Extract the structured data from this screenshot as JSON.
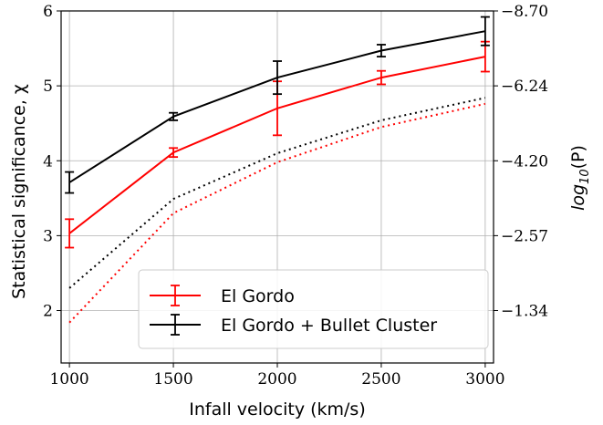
{
  "chart_data": {
    "type": "line",
    "xlabel": "Infall velocity (km/s)",
    "ylabel": "Statistical significance, χ",
    "y2label": "log10(P)",
    "x": [
      1000,
      1500,
      2000,
      2500,
      3000
    ],
    "xlim": [
      960,
      3040
    ],
    "ylim": [
      1.3,
      6.0
    ],
    "xticks": [
      "1000",
      "1500",
      "2000",
      "2500",
      "3000"
    ],
    "yticks": [
      2,
      3,
      4,
      5,
      6
    ],
    "y2ticks": [
      {
        "value": 1.34,
        "label": "−1.34"
      },
      {
        "value": 2.57,
        "label": "−2.57"
      },
      {
        "value": 4.2,
        "label": "−4.20"
      },
      {
        "value": 6.24,
        "label": "−6.24"
      },
      {
        "value": 8.7,
        "label": "−8.70"
      }
    ],
    "y2_tick_chi": [
      2,
      3,
      4,
      5,
      6
    ],
    "grid": true,
    "legend_position": "bottom-right",
    "series": [
      {
        "name": "El Gordo + Bullet Cluster",
        "color": "#000000",
        "style": "solid-errorbar",
        "values": [
          3.71,
          4.59,
          5.11,
          5.47,
          5.73
        ],
        "errors": [
          0.14,
          0.05,
          0.22,
          0.08,
          0.19
        ]
      },
      {
        "name": "El Gordo",
        "color": "#ff0000",
        "style": "solid-errorbar",
        "values": [
          3.03,
          4.11,
          4.7,
          5.11,
          5.39
        ],
        "errors": [
          0.19,
          0.06,
          0.36,
          0.09,
          0.2
        ]
      },
      {
        "color": "#000000",
        "style": "dotted",
        "values": [
          2.3,
          3.49,
          4.1,
          4.54,
          4.84
        ]
      },
      {
        "color": "#ff0000",
        "style": "dotted",
        "values": [
          1.84,
          3.3,
          3.98,
          4.45,
          4.76
        ]
      }
    ]
  }
}
